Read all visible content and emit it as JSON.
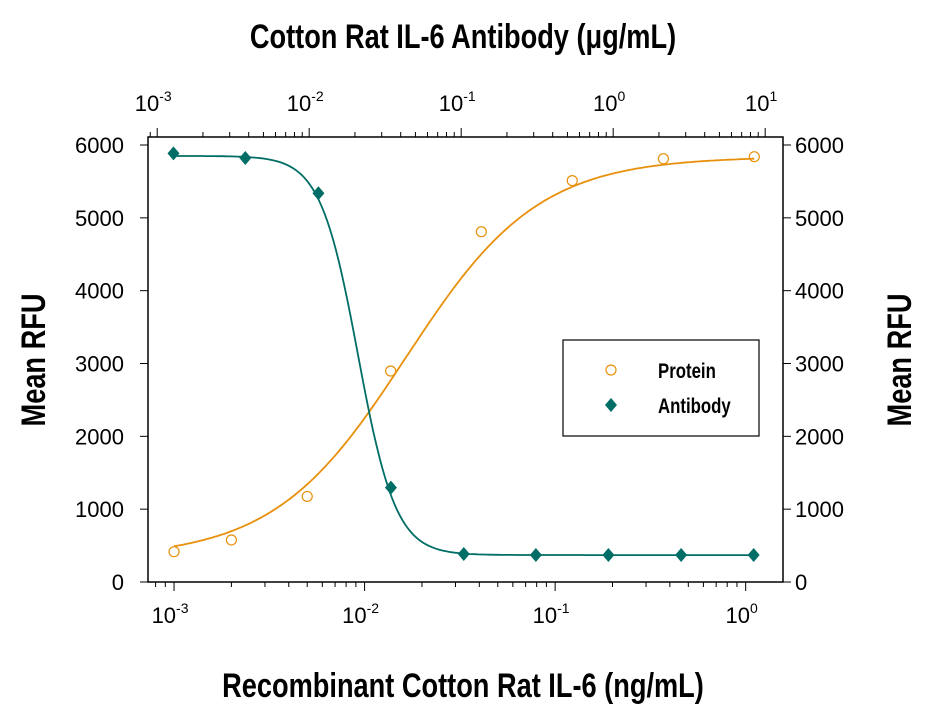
{
  "chart_data": {
    "type": "scatter",
    "title": "",
    "top_axis": {
      "label": "Cotton Rat IL-6 Antibody (μg/mL)",
      "scale": "log",
      "range": [
        0.00087,
        13.1
      ],
      "tick_labels": [
        "10^-3",
        "10^-2",
        "10^-1",
        "10^0",
        "10^1"
      ]
    },
    "bottom_axis": {
      "label": "Recombinant Cotton Rat IL-6 (ng/mL)",
      "scale": "log",
      "range": [
        0.00073,
        1.57
      ],
      "tick_labels": [
        "10^-3",
        "10^-2",
        "10^-1",
        "10^0"
      ]
    },
    "left_axis": {
      "label": "Mean RFU",
      "range": [
        0,
        6110
      ],
      "tick_labels": [
        "0",
        "1000",
        "2000",
        "3000",
        "4000",
        "5000",
        "6000"
      ]
    },
    "right_axis": {
      "label": "Mean RFU",
      "range": [
        0,
        6110
      ],
      "tick_labels": [
        "0",
        "1000",
        "2000",
        "3000",
        "4000",
        "5000",
        "6000"
      ]
    },
    "grid": false,
    "legend_position": "right",
    "series": [
      {
        "name": "Protein",
        "axis": "bottom",
        "marker": "open-circle",
        "color": "#E8900C",
        "x": [
          0.001,
          0.002,
          0.005,
          0.0137,
          0.041,
          0.123,
          0.37,
          1.11
        ],
        "y": [
          416,
          577,
          1175,
          2897,
          4810,
          5511,
          5812,
          5840
        ]
      },
      {
        "name": "Antibody",
        "axis": "top",
        "marker": "filled-diamond",
        "color": "#006E66",
        "x": [
          0.00128,
          0.0038,
          0.0115,
          0.0345,
          0.104,
          0.31,
          0.93,
          2.8,
          8.4
        ],
        "y": [
          5886,
          5822,
          5337,
          1295,
          385,
          371,
          371,
          371,
          371
        ]
      }
    ]
  }
}
